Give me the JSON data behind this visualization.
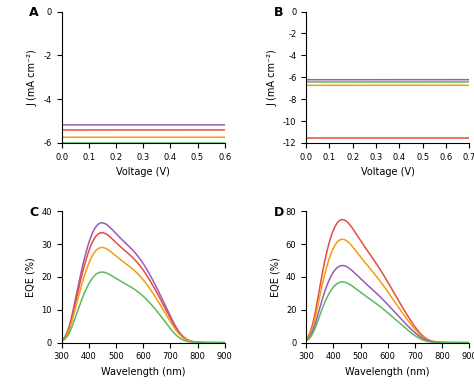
{
  "colors": {
    "purple": "#9B59B6",
    "red": "#E74C3C",
    "orange": "#F39C12",
    "green": "#5CB85C"
  },
  "panel_A": {
    "title": "A",
    "xlabel": "Voltage (V)",
    "ylabel": "J (mA cm⁻²)",
    "xlim": [
      0.0,
      0.6
    ],
    "ylim": [
      -6,
      0
    ],
    "xticks": [
      0.0,
      0.1,
      0.2,
      0.3,
      0.4,
      0.5,
      0.6
    ],
    "yticks": [
      0,
      -2,
      -4,
      -6
    ]
  },
  "panel_B": {
    "title": "B",
    "xlabel": "Voltage (V)",
    "ylabel": "J (mA cm⁻²)",
    "xlim": [
      0.0,
      0.7
    ],
    "ylim": [
      -12,
      0
    ],
    "xticks": [
      0.0,
      0.1,
      0.2,
      0.3,
      0.4,
      0.5,
      0.6,
      0.7
    ],
    "yticks": [
      0,
      -2,
      -4,
      -6,
      -8,
      -10,
      -12
    ]
  },
  "panel_C": {
    "title": "C",
    "xlabel": "Wavelength (nm)",
    "ylabel": "EQE (%)",
    "xlim": [
      300,
      900
    ],
    "ylim": [
      0,
      40
    ],
    "xticks": [
      300,
      400,
      500,
      600,
      700,
      800,
      900
    ],
    "yticks": [
      0,
      10,
      20,
      30,
      40
    ]
  },
  "panel_D": {
    "title": "D",
    "xlabel": "Wavelength (nm)",
    "ylabel": "EQE (%)",
    "xlim": [
      300,
      900
    ],
    "ylim": [
      0,
      80
    ],
    "xticks": [
      300,
      400,
      500,
      600,
      700,
      800,
      900
    ],
    "yticks": [
      0,
      20,
      40,
      60,
      80
    ]
  }
}
